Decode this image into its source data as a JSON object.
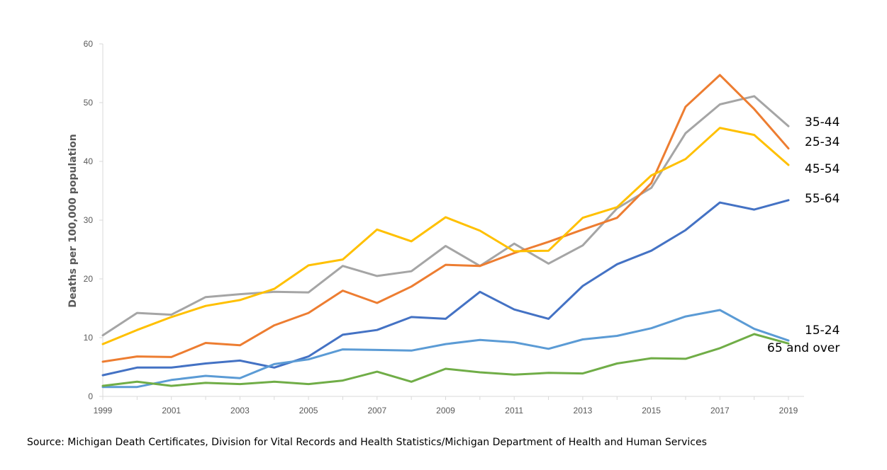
{
  "chart_data": {
    "type": "line",
    "title": "",
    "xlabel": "",
    "ylabel": "Deaths per 100,000 population",
    "ylim": [
      0,
      60
    ],
    "y_ticks": [
      0,
      10,
      20,
      30,
      40,
      50,
      60
    ],
    "x": [
      1999,
      2000,
      2001,
      2002,
      2003,
      2004,
      2005,
      2006,
      2007,
      2008,
      2009,
      2010,
      2011,
      2012,
      2013,
      2014,
      2015,
      2016,
      2017,
      2018,
      2019
    ],
    "x_tick_labels": [
      "1999",
      "2001",
      "2003",
      "2005",
      "2007",
      "2009",
      "2011",
      "2013",
      "2015",
      "2017",
      "2019"
    ],
    "grid": false,
    "legend": "direct labels at right end of each line",
    "series": [
      {
        "name": "35-44",
        "color": "#a5a5a5",
        "values": [
          10.4,
          14.2,
          13.9,
          16.9,
          17.4,
          17.8,
          17.7,
          22.2,
          20.5,
          21.3,
          25.6,
          22.2,
          26.0,
          22.6,
          25.7,
          32.0,
          35.5,
          44.8,
          49.7,
          51.1,
          46.0
        ]
      },
      {
        "name": "25-34",
        "color": "#ed7d31",
        "values": [
          5.9,
          6.8,
          6.7,
          9.1,
          8.7,
          12.1,
          14.2,
          18.0,
          15.9,
          18.7,
          22.4,
          22.2,
          24.4,
          26.3,
          28.4,
          30.4,
          36.3,
          49.3,
          54.7,
          48.9,
          42.2
        ]
      },
      {
        "name": "45-54",
        "color": "#ffc000",
        "values": [
          8.9,
          11.3,
          13.5,
          15.4,
          16.4,
          18.3,
          22.3,
          23.3,
          28.4,
          26.4,
          30.5,
          28.2,
          24.7,
          24.8,
          30.4,
          32.2,
          37.6,
          40.4,
          45.7,
          44.5,
          39.4
        ]
      },
      {
        "name": "55-64",
        "color": "#4472c4",
        "values": [
          3.6,
          4.9,
          4.9,
          5.6,
          6.1,
          4.9,
          6.8,
          10.5,
          11.3,
          13.5,
          13.2,
          17.8,
          14.8,
          13.2,
          18.8,
          22.5,
          24.8,
          28.3,
          33.0,
          31.8,
          33.4
        ]
      },
      {
        "name": "15-24",
        "color": "#5b9bd5",
        "values": [
          1.6,
          1.6,
          2.8,
          3.5,
          3.1,
          5.5,
          6.3,
          8.0,
          7.9,
          7.8,
          8.9,
          9.6,
          9.2,
          8.1,
          9.7,
          10.3,
          11.6,
          13.6,
          14.7,
          11.5,
          9.5
        ]
      },
      {
        "name": "65 and over",
        "color": "#70ad47",
        "values": [
          1.8,
          2.5,
          1.8,
          2.3,
          2.1,
          2.5,
          2.1,
          2.7,
          4.2,
          2.5,
          4.7,
          4.1,
          3.7,
          4.0,
          3.9,
          5.6,
          6.5,
          6.4,
          8.2,
          10.6,
          9.0
        ]
      }
    ]
  },
  "source_text": "Source: Michigan Death Certificates, Division for Vital Records and Health Statistics/Michigan Department of Health and Human Services"
}
